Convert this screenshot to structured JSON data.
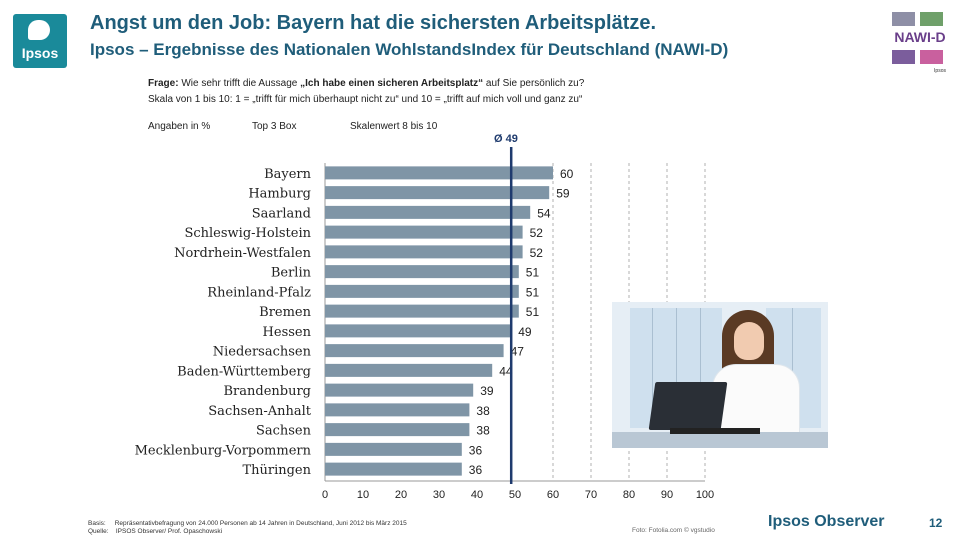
{
  "logo": {
    "text": "Ipsos"
  },
  "header": {
    "title": "Angst um den Job: Bayern hat die sichersten Arbeitsplätze.",
    "subtitle": "Ipsos – Ergebnisse des Nationalen WohlstandsIndex für Deutschland (NAWI-D)"
  },
  "badge": {
    "text": "NAWI-D",
    "small": "Ipsos"
  },
  "question": {
    "label": "Frage:",
    "text_before": " Wie sehr trifft die Aussage ",
    "quote": "„Ich habe einen sicheren Arbeitsplatz“",
    "text_after": " auf Sie persönlich zu?",
    "scale": "Skala von 1 bis 10: 1 = „trifft für mich überhaupt nicht zu“ und 10 = „trifft auf mich voll und ganz zu“"
  },
  "labels": {
    "unit": "Angaben in %",
    "top3": "Top 3 Box",
    "scale_range": "Skalenwert 8 bis 10"
  },
  "average": {
    "label": "Ø 49",
    "value": 49
  },
  "chart_data": {
    "type": "bar",
    "orientation": "horizontal",
    "categories": [
      "Bayern",
      "Hamburg",
      "Saarland",
      "Schleswig-Holstein",
      "Nordrhein-Westfalen",
      "Berlin",
      "Rheinland-Pfalz",
      "Bremen",
      "Hessen",
      "Niedersachsen",
      "Baden-Württemberg",
      "Brandenburg",
      "Sachsen-Anhalt",
      "Sachsen",
      "Mecklenburg-Vorpommern",
      "Thüringen"
    ],
    "values": [
      60,
      59,
      54,
      52,
      52,
      51,
      51,
      51,
      49,
      47,
      44,
      39,
      38,
      38,
      36,
      36
    ],
    "xlim": [
      0,
      100
    ],
    "xticks": [
      0,
      10,
      20,
      30,
      40,
      50,
      60,
      70,
      80,
      90,
      100
    ],
    "grid": "vertical dashed from 60 to 100",
    "reference_line": 49,
    "bar_color": "#7f95a6",
    "line_color": "#1f3b6e"
  },
  "footer": {
    "basis_label": "Basis:",
    "basis": "Repräsentativbefragung von 24.000 Personen ab 14 Jahren in Deutschland, Juni 2012 bis März 2015",
    "source_label": "Quelle:",
    "source": "IPSOS Observer/ Prof. Opaschowski",
    "photo_credit": "Foto: Fotolia.com © vgstudio",
    "brand": "Ipsos Observer",
    "page": "12"
  },
  "colors": {
    "accent": "#1f5d7a",
    "logo": "#1a8a9a",
    "badge": "#6a3f8a"
  }
}
